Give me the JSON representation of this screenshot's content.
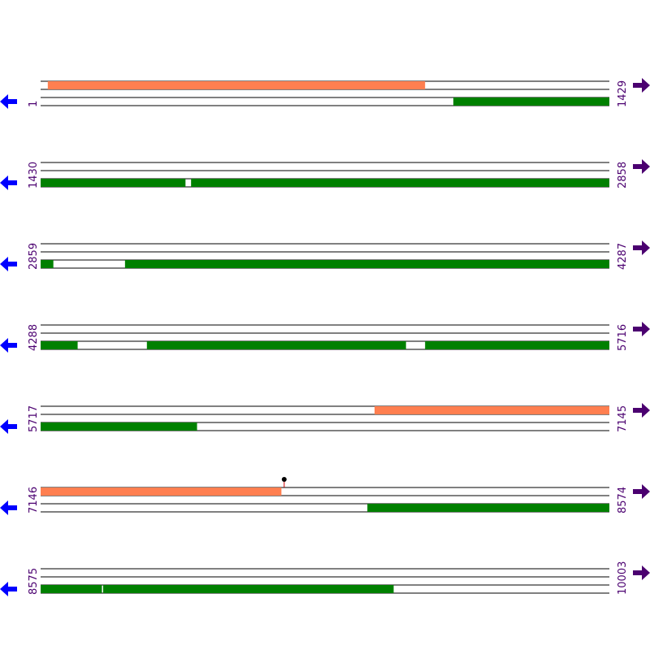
{
  "rows": [
    {
      "start": 1,
      "end": 1429,
      "features": [
        {
          "track": 1,
          "color": "#ff7f50",
          "from": 19,
          "to": 966
        },
        {
          "track": 2,
          "color": "#008000",
          "from": 1038,
          "to": 1429
        }
      ]
    },
    {
      "start": 1430,
      "end": 2858,
      "features": [
        {
          "track": 2,
          "color": "#008000",
          "from": 1430,
          "to": 1793
        },
        {
          "track": 2,
          "color": "#008000",
          "from": 1808,
          "to": 2858
        }
      ]
    },
    {
      "start": 2859,
      "end": 4287,
      "features": [
        {
          "track": 2,
          "color": "#008000",
          "from": 2859,
          "to": 2890
        },
        {
          "track": 2,
          "color": "#008000",
          "from": 3071,
          "to": 4287
        }
      ]
    },
    {
      "start": 4288,
      "end": 5716,
      "features": [
        {
          "track": 2,
          "color": "#008000",
          "from": 4288,
          "to": 4380
        },
        {
          "track": 2,
          "color": "#008000",
          "from": 4555,
          "to": 5205
        },
        {
          "track": 2,
          "color": "#008000",
          "from": 5254,
          "to": 5716
        }
      ]
    },
    {
      "start": 5717,
      "end": 7145,
      "features": [
        {
          "track": 1,
          "color": "#ff7f50",
          "from": 6556,
          "to": 7145
        },
        {
          "track": 2,
          "color": "#008000",
          "from": 5717,
          "to": 6109
        }
      ]
    },
    {
      "start": 7146,
      "end": 8574,
      "features": [
        {
          "track": 1,
          "color": "#ff7f50",
          "from": 7146,
          "to": 7750
        },
        {
          "track": 2,
          "color": "#008000",
          "from": 7967,
          "to": 8574
        }
      ],
      "markers": [
        7758
      ]
    },
    {
      "start": 8575,
      "end": 10003,
      "features": [
        {
          "track": 2,
          "color": "#008000",
          "from": 8575,
          "to": 8728
        },
        {
          "track": 2,
          "color": "#008000",
          "from": 8732,
          "to": 9461
        }
      ]
    }
  ]
}
